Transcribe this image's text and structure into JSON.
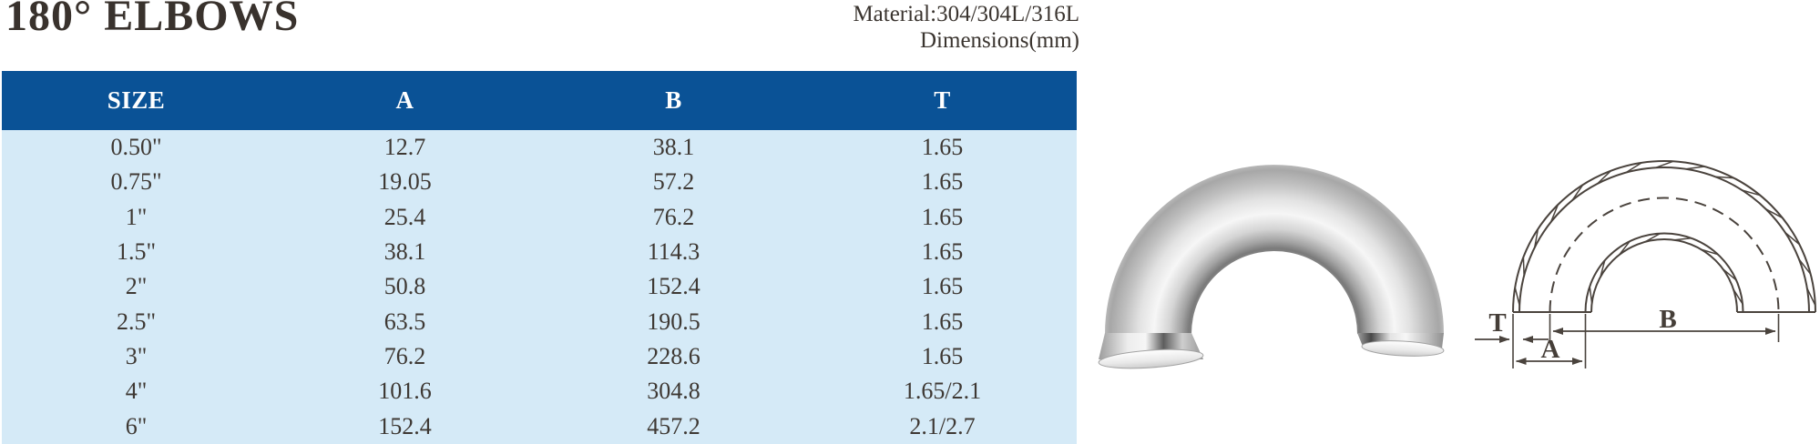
{
  "header": {
    "title": "180° ELBOWS",
    "material": "Material:304/304L/316L",
    "dimensions_note": "Dimensions(mm)"
  },
  "table": {
    "columns": [
      "SIZE",
      "A",
      "B",
      "T"
    ],
    "rows": [
      [
        "0.50\"",
        "12.7",
        "38.1",
        "1.65"
      ],
      [
        "0.75\"",
        "19.05",
        "57.2",
        "1.65"
      ],
      [
        "1\"",
        "25.4",
        "76.2",
        "1.65"
      ],
      [
        "1.5\"",
        "38.1",
        "114.3",
        "1.65"
      ],
      [
        "2\"",
        "50.8",
        "152.4",
        "1.65"
      ],
      [
        "2.5\"",
        "63.5",
        "190.5",
        "1.65"
      ],
      [
        "3\"",
        "76.2",
        "228.6",
        "1.65"
      ],
      [
        "4\"",
        "101.6",
        "304.8",
        "1.65/2.1"
      ],
      [
        "6\"",
        "152.4",
        "457.2",
        "2.1/2.7"
      ]
    ]
  },
  "diagram": {
    "labels": {
      "t": "T",
      "a": "A",
      "b": "B"
    }
  },
  "colors": {
    "header_bg": "#0a5296",
    "row_bg": "#d5eaf7",
    "header_text": "#ffffff",
    "body_text": "#3a342f",
    "title_text": "#39322d",
    "drawing_line": "#4a433d"
  }
}
